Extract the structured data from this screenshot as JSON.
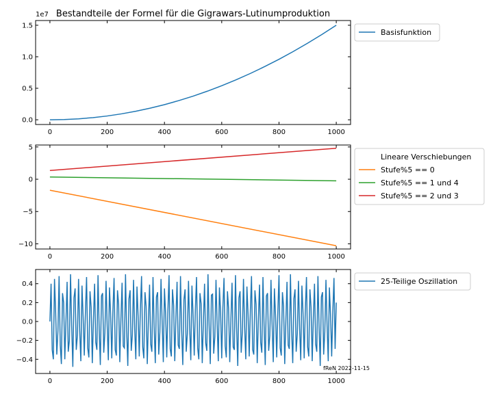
{
  "title": "Bestandteile der Formel für die Gigrawars-Lutinumproduktion",
  "watermark": "fReN 2022-11-15",
  "chart_data": [
    {
      "type": "line",
      "offset_label": "1e7",
      "xlim": [
        -50,
        1050
      ],
      "ylim": [
        -0.075,
        1.575
      ],
      "x_ticks": [
        0,
        200,
        400,
        600,
        800,
        1000
      ],
      "x_tick_labels": [
        "0",
        "200",
        "400",
        "600",
        "800",
        "1000"
      ],
      "y_ticks": [
        0.0,
        0.5,
        1.0,
        1.5
      ],
      "y_tick_labels": [
        "0.0",
        "0.5",
        "1.0",
        "1.5"
      ],
      "legend_placement": "outside-right",
      "legend_title": "",
      "series": [
        {
          "name": "Basisfunktion",
          "color": "#1f77b4",
          "x": [
            0,
            50,
            100,
            150,
            200,
            250,
            300,
            350,
            400,
            450,
            500,
            550,
            600,
            650,
            700,
            750,
            800,
            850,
            900,
            950,
            1000
          ],
          "y": [
            0.0,
            0.004,
            0.015,
            0.034,
            0.06,
            0.094,
            0.135,
            0.184,
            0.24,
            0.304,
            0.375,
            0.454,
            0.54,
            0.634,
            0.735,
            0.844,
            0.96,
            1.084,
            1.215,
            1.354,
            1.5
          ]
        }
      ]
    },
    {
      "type": "line",
      "xlim": [
        -50,
        1050
      ],
      "ylim": [
        -10.8,
        5.3
      ],
      "x_ticks": [
        0,
        200,
        400,
        600,
        800,
        1000
      ],
      "x_tick_labels": [
        "0",
        "200",
        "400",
        "600",
        "800",
        "1000"
      ],
      "y_ticks": [
        -10,
        -5,
        0,
        5
      ],
      "y_tick_labels": [
        "−10",
        "−5",
        "0",
        "5"
      ],
      "legend_placement": "outside-right",
      "legend_title": "Lineare Verschiebungen",
      "series": [
        {
          "name": "Stufe%5 == 0",
          "color": "#ff7f0e",
          "x": [
            0,
            1000
          ],
          "y": [
            -1.7,
            -10.3
          ]
        },
        {
          "name": "Stufe%5 == 1 und 4",
          "color": "#2ca02c",
          "x": [
            0,
            1000
          ],
          "y": [
            0.35,
            -0.25
          ]
        },
        {
          "name": "Stufe%5 == 2 und 3",
          "color": "#d62728",
          "x": [
            0,
            1000
          ],
          "y": [
            1.35,
            4.8
          ]
        }
      ]
    },
    {
      "type": "line",
      "xlim": [
        -50,
        1050
      ],
      "ylim": [
        -0.55,
        0.55
      ],
      "x_ticks": [
        0,
        200,
        400,
        600,
        800,
        1000
      ],
      "x_tick_labels": [
        "0",
        "200",
        "400",
        "600",
        "800",
        "1000"
      ],
      "y_ticks": [
        -0.4,
        -0.2,
        0.0,
        0.2,
        0.4
      ],
      "y_tick_labels": [
        "−0.4",
        "−0.2",
        "0.0",
        "0.2",
        "0.4"
      ],
      "legend_placement": "outside-right",
      "legend_title": "",
      "series": [
        {
          "name": "25-Teilige Oszillation",
          "color": "#1f77b4",
          "x_start": 0,
          "x_step": 4,
          "y": [
            0.0,
            0.4,
            -0.3,
            -0.4,
            0.45,
            0.1,
            -0.35,
            -0.1,
            0.48,
            -0.25,
            -0.45,
            0.3,
            0.2,
            -0.4,
            0.0,
            0.42,
            -0.32,
            -0.2,
            0.5,
            -0.05,
            -0.48,
            0.25,
            0.35,
            -0.3,
            -0.15,
            0.45,
            -0.1,
            -0.42,
            0.38,
            0.05,
            -0.36,
            0.1,
            0.47,
            -0.28,
            -0.38,
            0.32,
            0.15,
            -0.44,
            0.02,
            0.4,
            -0.22,
            -0.3,
            0.49,
            -0.08,
            -0.46,
            0.27,
            0.3,
            -0.33,
            -0.12,
            0.43,
            -0.05,
            -0.41,
            0.36,
            0.08,
            -0.39,
            0.12,
            0.46,
            -0.3,
            -0.36,
            0.33,
            0.18,
            -0.43,
            0.03,
            0.41,
            -0.26,
            -0.28,
            0.5,
            -0.1,
            -0.47,
            0.24,
            0.33,
            -0.31,
            -0.14,
            0.44,
            -0.08,
            -0.4,
            0.37,
            0.06,
            -0.37,
            0.14,
            0.48,
            -0.27,
            -0.39,
            0.31,
            0.16,
            -0.45,
            0.01,
            0.39,
            -0.24,
            -0.32,
            0.47,
            -0.06,
            -0.44,
            0.26,
            0.31,
            -0.35,
            -0.11,
            0.45,
            -0.02,
            -0.43,
            0.35,
            0.09,
            -0.38,
            0.11,
            0.49,
            -0.29,
            -0.37,
            0.34,
            0.17,
            -0.42,
            0.04,
            0.42,
            -0.25,
            -0.29,
            0.48,
            -0.09,
            -0.46,
            0.23,
            0.34,
            -0.32,
            -0.13,
            0.43,
            -0.07,
            -0.41,
            0.38,
            0.07,
            -0.36,
            0.13,
            0.47,
            -0.28,
            -0.4,
            0.3,
            0.19,
            -0.44,
            0.0,
            0.4,
            -0.23,
            -0.31,
            0.5,
            -0.04,
            -0.45,
            0.28,
            0.29,
            -0.34,
            -0.16,
            0.44,
            -0.03,
            -0.42,
            0.36,
            0.1,
            -0.39,
            0.15,
            0.46,
            -0.26,
            -0.38,
            0.32,
            0.14,
            -0.43,
            0.02,
            0.41,
            -0.27,
            -0.3,
            0.49,
            -0.07,
            -0.47,
            0.25,
            0.32,
            -0.33,
            -0.12,
            0.45,
            -0.06,
            -0.4,
            0.37,
            0.08,
            -0.37,
            0.12,
            0.48,
            -0.3,
            -0.35,
            0.33,
            0.18,
            -0.44,
            0.03,
            0.39,
            -0.22,
            -0.33,
            0.47,
            -0.05,
            -0.46,
            0.27,
            0.3,
            -0.31,
            -0.15,
            0.44,
            -0.04,
            -0.43,
            0.35,
            0.06,
            -0.38,
            0.1,
            0.49,
            -0.28,
            -0.36,
            0.31,
            0.16,
            -0.45,
            0.01,
            0.42,
            -0.25,
            -0.29,
            0.5,
            -0.09,
            -0.44,
            0.24,
            0.34,
            -0.32,
            -0.13,
            0.43,
            -0.08,
            -0.41,
            0.38,
            0.09,
            -0.39,
            0.13,
            0.47,
            -0.27,
            -0.37,
            0.34,
            0.15,
            -0.42,
            0.04,
            0.4,
            -0.24,
            -0.32,
            0.48,
            -0.06,
            -0.47,
            0.26,
            0.31,
            -0.35,
            -0.11,
            0.44,
            -0.05,
            -0.42,
            0.36,
            0.07,
            -0.37,
            0.11,
            0.46,
            -0.29,
            0.2
          ]
        }
      ]
    }
  ]
}
